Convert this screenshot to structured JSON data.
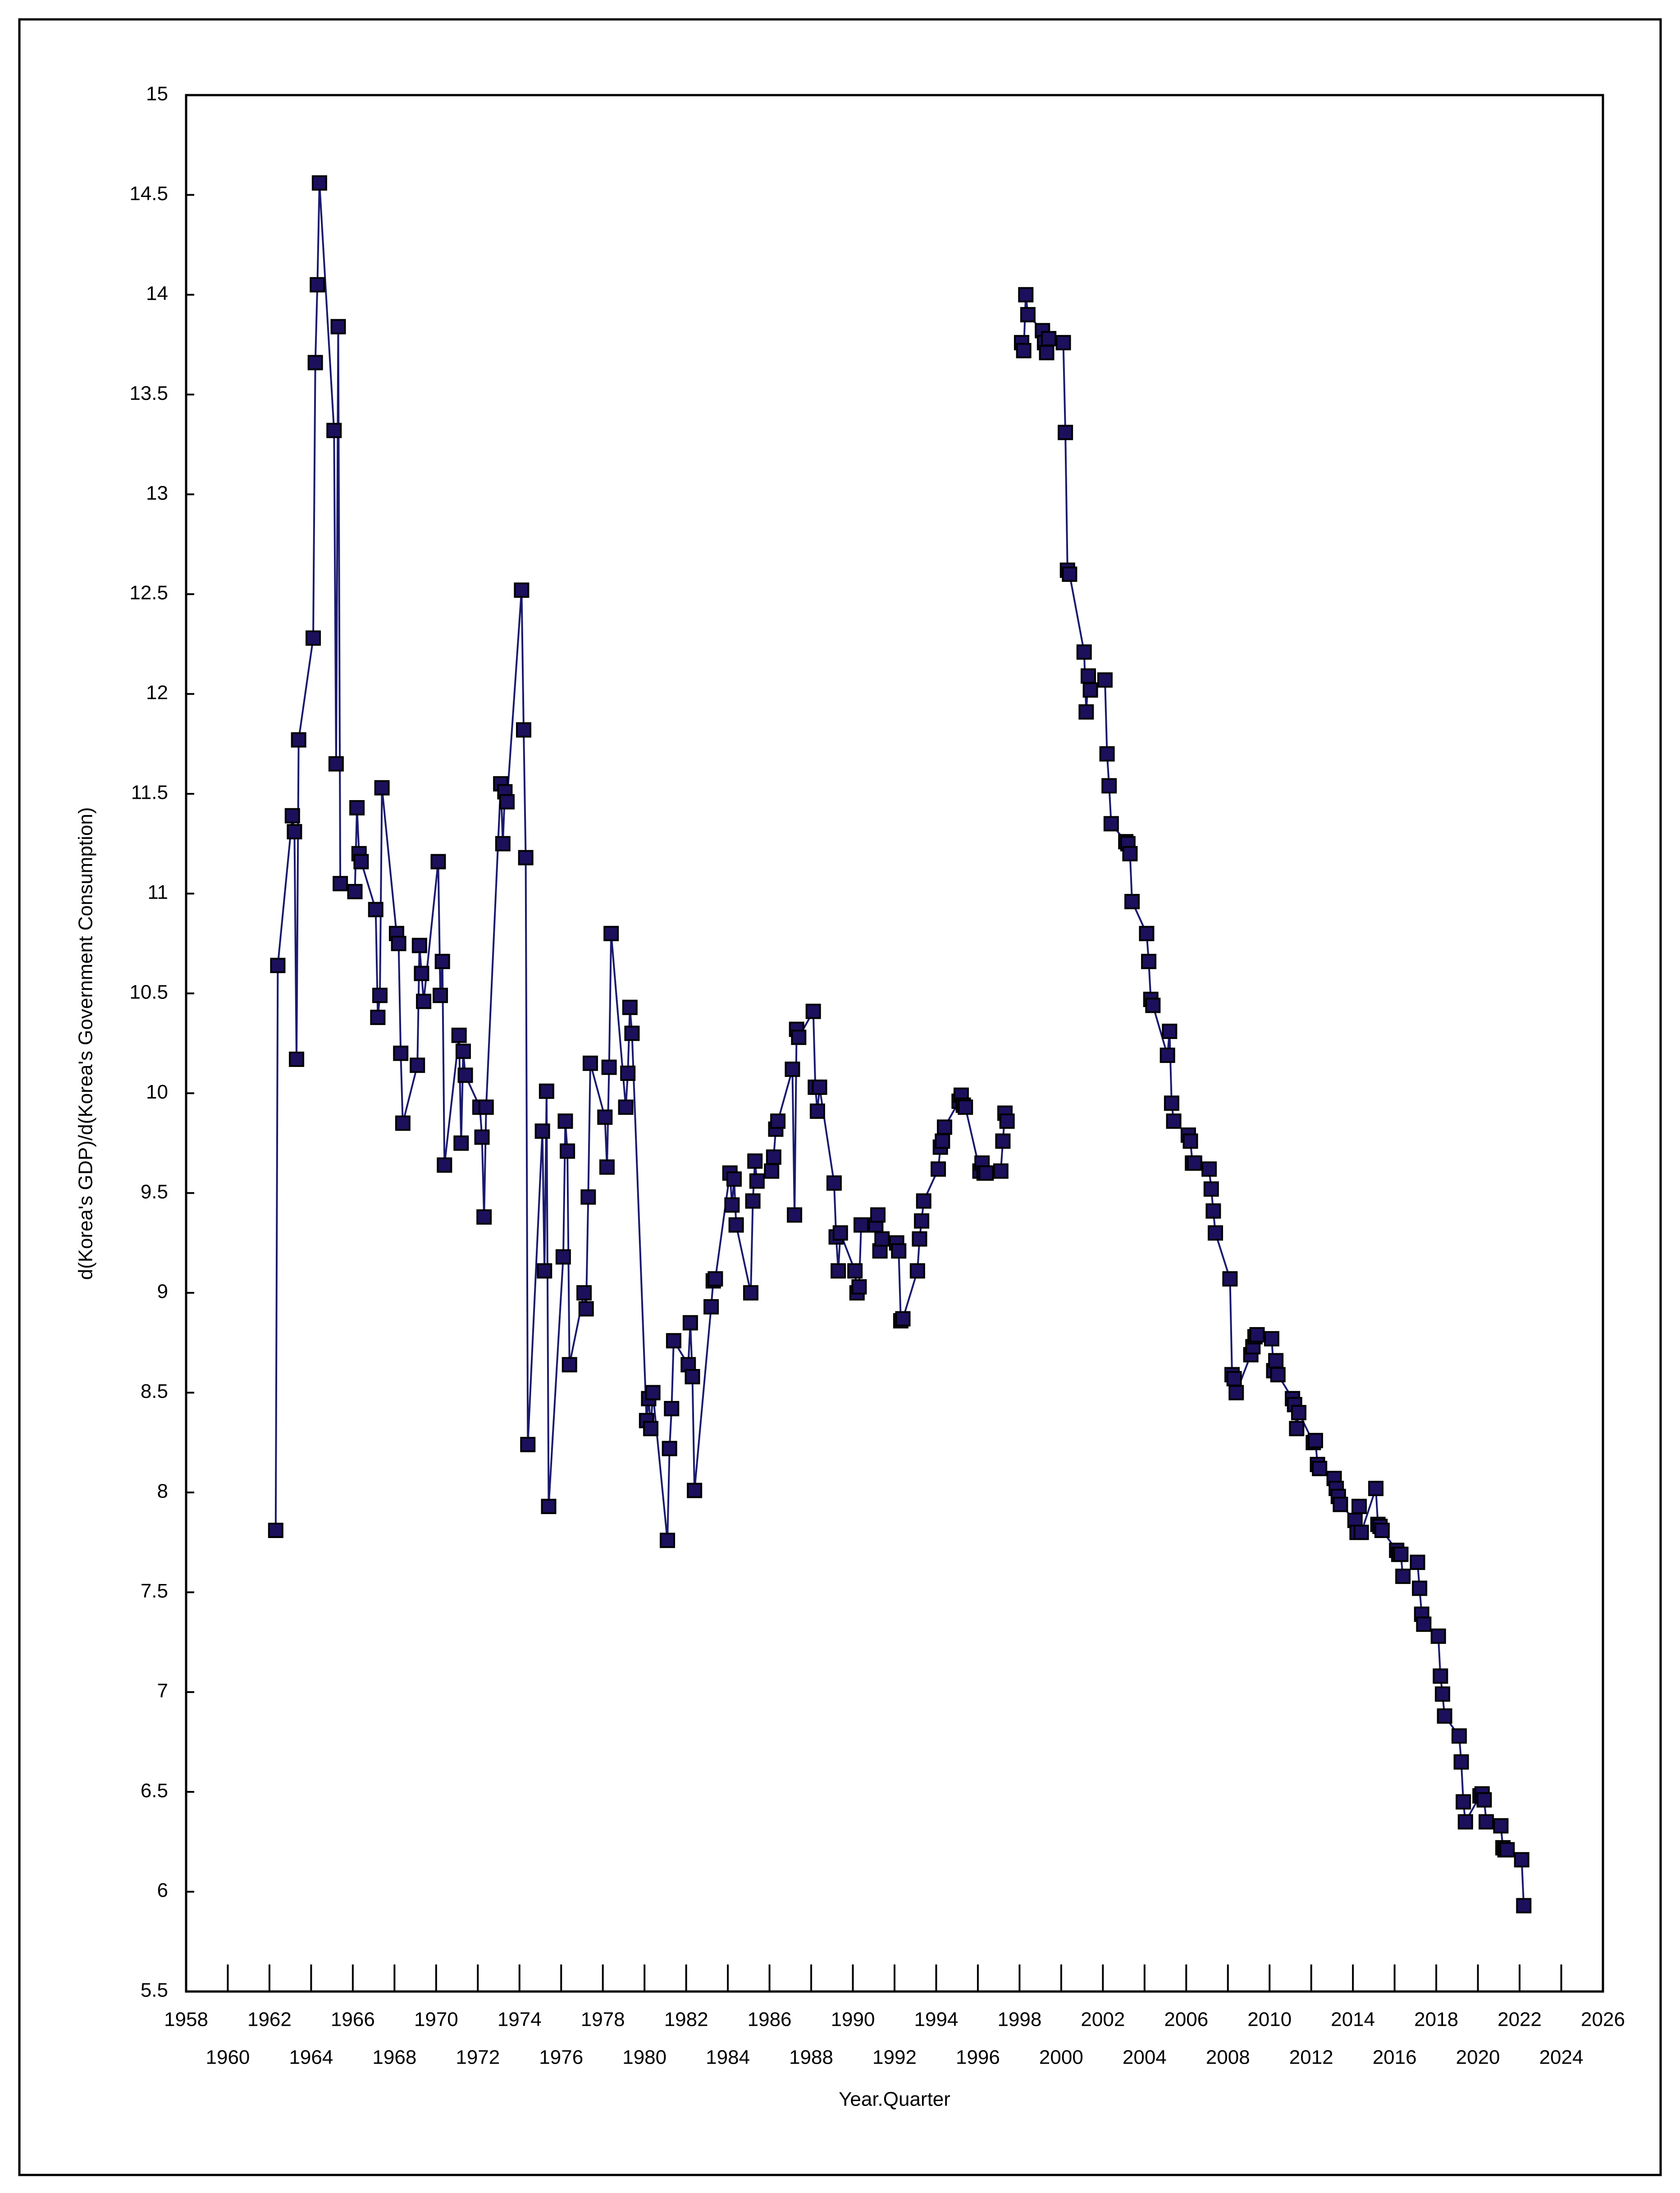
{
  "chart_data": {
    "type": "line",
    "xlabel": "Year.Quarter",
    "ylabel": "d(Korea's GDP)/d(Korea's Government Consumption)",
    "color": "#1a1a6e",
    "marker_color": "#1c0f5c",
    "xlim": [
      1958,
      2026
    ],
    "xticks": [
      1958,
      1960,
      1962,
      1964,
      1966,
      1968,
      1970,
      1972,
      1974,
      1976,
      1978,
      1980,
      1982,
      1984,
      1986,
      1988,
      1990,
      1992,
      1994,
      1996,
      1998,
      2000,
      2002,
      2004,
      2006,
      2008,
      2010,
      2012,
      2014,
      2016,
      2018,
      2020,
      2022,
      2024,
      2026
    ],
    "ylim": [
      5.5,
      15
    ],
    "yticks": [
      5.5,
      6,
      6.5,
      7,
      7.5,
      8,
      8.5,
      9,
      9.5,
      10,
      10.5,
      11,
      11.5,
      12,
      12.5,
      13,
      13.5,
      14,
      14.5,
      15
    ],
    "x": [
      1962.3,
      1962.4,
      1963.1,
      1963.2,
      1963.3,
      1963.4,
      1964.1,
      1964.2,
      1964.3,
      1964.4,
      1965.1,
      1965.2,
      1965.3,
      1965.4,
      1966.1,
      1966.2,
      1966.3,
      1966.4,
      1967.1,
      1967.2,
      1967.3,
      1967.4,
      1968.1,
      1968.2,
      1968.3,
      1968.4,
      1969.1,
      1969.2,
      1969.3,
      1969.4,
      1970.1,
      1970.2,
      1970.3,
      1970.4,
      1971.1,
      1971.2,
      1971.3,
      1971.4,
      1972.1,
      1972.2,
      1972.3,
      1972.4,
      1973.1,
      1973.2,
      1973.3,
      1973.4,
      1974.1,
      1974.2,
      1974.3,
      1974.4,
      1975.1,
      1975.2,
      1975.3,
      1975.4,
      1976.1,
      1976.2,
      1976.3,
      1976.4,
      1977.1,
      1977.2,
      1977.3,
      1977.4,
      1978.1,
      1978.2,
      1978.3,
      1978.4,
      1979.1,
      1979.2,
      1979.3,
      1979.4,
      1980.1,
      1980.2,
      1980.3,
      1980.4,
      1981.1,
      1981.2,
      1981.3,
      1981.4,
      1982.1,
      1982.2,
      1982.3,
      1982.4,
      1983.2,
      1983.3,
      1983.4,
      1984.1,
      1984.2,
      1984.3,
      1984.4,
      1985.1,
      1985.2,
      1985.3,
      1985.4,
      1986.1,
      1986.2,
      1986.3,
      1986.4,
      1987.1,
      1987.2,
      1987.3,
      1987.4,
      1988.1,
      1988.2,
      1988.3,
      1988.4,
      1989.1,
      1989.2,
      1989.3,
      1989.4,
      1990.1,
      1990.2,
      1990.3,
      1990.4,
      1991.1,
      1991.2,
      1991.3,
      1991.4,
      1992.1,
      1992.2,
      1992.3,
      1992.4,
      1993.1,
      1993.2,
      1993.3,
      1993.4,
      1994.1,
      1994.2,
      1994.3,
      1994.4,
      1995.1,
      1995.2,
      1995.3,
      1995.4,
      1996.1,
      1996.2,
      1996.3,
      1996.4,
      1997.1,
      1997.2,
      1997.3,
      1997.4,
      null,
      1998.1,
      1998.2,
      1998.3,
      1998.4,
      1999.1,
      1999.2,
      1999.3,
      1999.4,
      2000.1,
      2000.2,
      2000.3,
      2000.4,
      2001.1,
      2001.2,
      2001.3,
      2001.4,
      2002.1,
      2002.2,
      2002.3,
      2002.4,
      2003.1,
      2003.2,
      2003.3,
      2003.4,
      2004.1,
      2004.2,
      2004.3,
      2004.4,
      2005.1,
      2005.2,
      2005.3,
      2005.4,
      2006.1,
      2006.2,
      2006.3,
      2006.4,
      2007.1,
      2007.2,
      2007.3,
      2007.4,
      2008.1,
      2008.2,
      2008.3,
      2008.4,
      2009.1,
      2009.2,
      2009.3,
      2009.4,
      2010.1,
      2010.2,
      2010.3,
      2010.4,
      2011.1,
      2011.2,
      2011.3,
      2011.4,
      2012.1,
      2012.2,
      2012.3,
      2012.4,
      2013.1,
      2013.2,
      2013.3,
      2013.4,
      2014.1,
      2014.2,
      2014.3,
      2014.4,
      2015.1,
      2015.2,
      2015.3,
      2015.4,
      2016.1,
      2016.2,
      2016.3,
      2016.4,
      2017.1,
      2017.2,
      2017.3,
      2017.4,
      2018.1,
      2018.2,
      2018.3,
      2018.4,
      2019.1,
      2019.2,
      2019.3,
      2019.4,
      2020.1,
      2020.2,
      2020.3,
      2020.4,
      2021.1,
      2021.2,
      2021.3,
      2021.4,
      2022.1,
      2022.2
    ],
    "values": [
      7.81,
      10.64,
      11.39,
      11.31,
      10.17,
      11.77,
      12.28,
      13.66,
      14.05,
      14.56,
      13.32,
      11.65,
      13.84,
      11.05,
      11.01,
      11.43,
      11.2,
      11.16,
      10.92,
      10.38,
      10.49,
      11.53,
      10.8,
      10.75,
      10.2,
      9.85,
      10.14,
      10.74,
      10.6,
      10.46,
      11.16,
      10.49,
      10.66,
      9.64,
      10.29,
      9.75,
      10.21,
      10.09,
      9.93,
      9.78,
      9.38,
      9.93,
      11.55,
      11.25,
      11.51,
      11.46,
      12.52,
      11.82,
      11.18,
      8.24,
      9.81,
      9.11,
      10.01,
      7.93,
      9.18,
      9.86,
      9.71,
      8.64,
      9.0,
      8.92,
      9.48,
      10.15,
      9.88,
      9.63,
      10.13,
      10.8,
      9.93,
      10.1,
      10.43,
      10.3,
      8.36,
      8.47,
      8.32,
      8.5,
      7.76,
      8.22,
      8.42,
      8.76,
      8.64,
      8.85,
      8.58,
      8.01,
      8.93,
      9.06,
      9.07,
      9.6,
      9.44,
      9.57,
      9.34,
      9.0,
      9.46,
      9.66,
      9.56,
      9.61,
      9.68,
      9.82,
      9.86,
      10.12,
      9.39,
      10.32,
      10.28,
      10.41,
      10.03,
      9.91,
      10.03,
      9.55,
      9.28,
      9.11,
      9.3,
      9.11,
      9.0,
      9.03,
      9.34,
      9.34,
      9.39,
      9.21,
      9.27,
      9.25,
      9.21,
      8.86,
      8.87,
      9.11,
      9.27,
      9.36,
      9.46,
      9.62,
      9.73,
      9.76,
      9.83,
      9.96,
      9.99,
      9.94,
      9.93,
      9.61,
      9.65,
      9.6,
      9.6,
      9.61,
      9.76,
      9.9,
      9.86,
      null,
      13.76,
      13.72,
      14.0,
      13.9,
      13.82,
      13.76,
      13.71,
      13.78,
      13.76,
      13.31,
      12.62,
      12.6,
      12.21,
      11.91,
      12.09,
      12.02,
      12.07,
      11.7,
      11.54,
      11.35,
      11.26,
      11.25,
      11.2,
      10.96,
      10.8,
      10.66,
      10.47,
      10.44,
      10.19,
      10.31,
      9.95,
      9.86,
      9.79,
      9.76,
      9.65,
      9.65,
      9.62,
      9.52,
      9.41,
      9.3,
      9.07,
      8.59,
      8.57,
      8.5,
      8.69,
      8.73,
      8.78,
      8.79,
      8.77,
      8.61,
      8.66,
      8.59,
      8.47,
      8.44,
      8.32,
      8.4,
      8.25,
      8.26,
      8.14,
      8.12,
      8.07,
      8.02,
      7.98,
      7.94,
      7.86,
      7.8,
      7.93,
      7.8,
      8.02,
      7.84,
      7.83,
      7.81,
      7.71,
      7.69,
      7.69,
      7.58,
      7.65,
      7.52,
      7.39,
      7.34,
      7.28,
      7.08,
      6.99,
      6.88,
      6.78,
      6.65,
      6.45,
      6.35,
      6.48,
      6.49,
      6.46,
      6.35,
      6.33,
      6.22,
      6.21,
      6.21,
      6.16,
      5.93
    ]
  }
}
